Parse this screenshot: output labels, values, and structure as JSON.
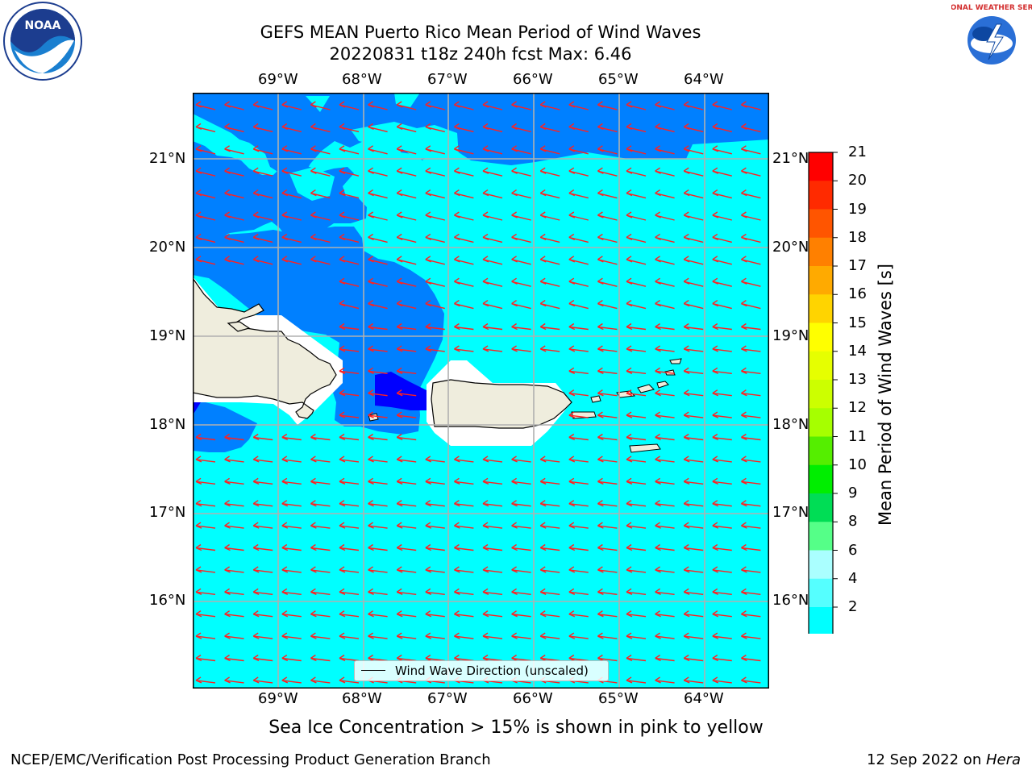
{
  "title_line1": "GEFS MEAN Puerto Rico Mean Period of Wind Waves",
  "title_line2": "20220831 t18z 240h fcst   Max: 6.46",
  "lon_labels": [
    "69°W",
    "68°W",
    "67°W",
    "66°W",
    "65°W",
    "64°W"
  ],
  "lat_labels": [
    "21°N",
    "20°N",
    "19°N",
    "18°N",
    "17°N",
    "16°N"
  ],
  "colorbar": {
    "title": "Mean Period of Wind Waves [s]",
    "ticks": [
      "21",
      "20",
      "19",
      "18",
      "17",
      "16",
      "15",
      "14",
      "13",
      "12",
      "11",
      "10",
      "9",
      "8",
      "6",
      "4",
      "2"
    ],
    "colors": [
      "#ff0000",
      "#ff2a00",
      "#ff5500",
      "#ff8000",
      "#ffaa00",
      "#ffd400",
      "#ffff00",
      "#e6ff00",
      "#ccff00",
      "#a6ff00",
      "#55ee00",
      "#00ee00",
      "#00dd55",
      "#55ff88",
      "#aaffff",
      "#55ffff",
      "#00ffff",
      "#0080ff",
      "#0000ff"
    ]
  },
  "legend_text": "Wind Wave Direction (unscaled)",
  "caption": "Sea Ice Concentration > 15% is shown in pink to yellow",
  "footer_left": "NCEP/EMC/Verification Post Processing Product Generation Branch",
  "footer_date": "12 Sep 2022 on ",
  "footer_machine": "Hera",
  "logo_noaa": "NOAA",
  "logo_nws": "NATIONAL WEATHER SERVICE"
}
